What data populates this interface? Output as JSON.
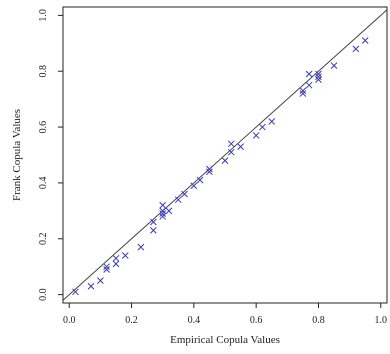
{
  "chart_data": {
    "type": "scatter",
    "title": "",
    "xlabel": "Empirical Copula Values",
    "ylabel": "Frank Copula Values",
    "xlim": [
      -0.02,
      1.02
    ],
    "ylim": [
      -0.03,
      1.03
    ],
    "x_ticks": [
      0.0,
      0.2,
      0.4,
      0.6,
      0.8,
      1.0
    ],
    "x_tick_labels": [
      "0.0",
      "0.2",
      "0.4",
      "0.6",
      "0.8",
      "1.0"
    ],
    "y_ticks": [
      0.0,
      0.2,
      0.4,
      0.6,
      0.8,
      1.0
    ],
    "y_tick_labels": [
      "0.0",
      "0.2",
      "0.4",
      "0.6",
      "0.8",
      "1.0"
    ],
    "marker": "x",
    "grid": false,
    "reference_line": {
      "slope": 1,
      "intercept": 0
    },
    "colors": {
      "points": "#3a3ab8",
      "reference_line": "#444444",
      "axes": "#222222"
    },
    "points": [
      {
        "x": 0.02,
        "y": 0.01
      },
      {
        "x": 0.07,
        "y": 0.03
      },
      {
        "x": 0.1,
        "y": 0.05
      },
      {
        "x": 0.12,
        "y": 0.09
      },
      {
        "x": 0.12,
        "y": 0.1
      },
      {
        "x": 0.15,
        "y": 0.11
      },
      {
        "x": 0.15,
        "y": 0.13
      },
      {
        "x": 0.18,
        "y": 0.14
      },
      {
        "x": 0.23,
        "y": 0.17
      },
      {
        "x": 0.27,
        "y": 0.23
      },
      {
        "x": 0.27,
        "y": 0.26
      },
      {
        "x": 0.3,
        "y": 0.28
      },
      {
        "x": 0.3,
        "y": 0.29
      },
      {
        "x": 0.3,
        "y": 0.3
      },
      {
        "x": 0.3,
        "y": 0.32
      },
      {
        "x": 0.32,
        "y": 0.3
      },
      {
        "x": 0.35,
        "y": 0.34
      },
      {
        "x": 0.37,
        "y": 0.36
      },
      {
        "x": 0.4,
        "y": 0.39
      },
      {
        "x": 0.42,
        "y": 0.41
      },
      {
        "x": 0.45,
        "y": 0.44
      },
      {
        "x": 0.45,
        "y": 0.45
      },
      {
        "x": 0.5,
        "y": 0.48
      },
      {
        "x": 0.52,
        "y": 0.51
      },
      {
        "x": 0.52,
        "y": 0.54
      },
      {
        "x": 0.55,
        "y": 0.53
      },
      {
        "x": 0.6,
        "y": 0.57
      },
      {
        "x": 0.62,
        "y": 0.6
      },
      {
        "x": 0.65,
        "y": 0.62
      },
      {
        "x": 0.75,
        "y": 0.72
      },
      {
        "x": 0.75,
        "y": 0.73
      },
      {
        "x": 0.77,
        "y": 0.75
      },
      {
        "x": 0.77,
        "y": 0.79
      },
      {
        "x": 0.8,
        "y": 0.77
      },
      {
        "x": 0.8,
        "y": 0.78
      },
      {
        "x": 0.8,
        "y": 0.79
      },
      {
        "x": 0.85,
        "y": 0.82
      },
      {
        "x": 0.92,
        "y": 0.88
      },
      {
        "x": 0.95,
        "y": 0.91
      }
    ]
  }
}
